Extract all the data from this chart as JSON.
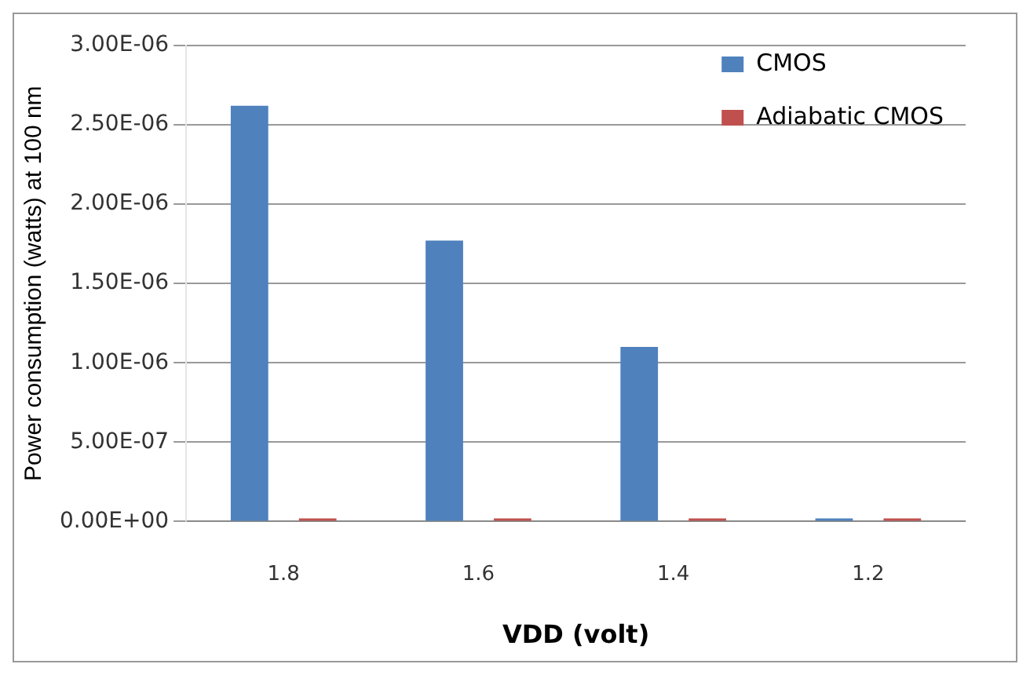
{
  "chart_data": {
    "type": "bar",
    "xlabel": "VDD (volt)",
    "ylabel": "Power consumption (watts) at 100 nm",
    "categories": [
      "1.8",
      "1.6",
      "1.4",
      "1.2"
    ],
    "series": [
      {
        "name": "CMOS",
        "color": "#4f81bd",
        "values": [
          2.62e-06,
          1.77e-06,
          1.1e-06,
          0
        ]
      },
      {
        "name": "Adiabatic CMOS",
        "color": "#c0504d",
        "values": [
          0,
          0,
          0,
          0
        ]
      }
    ],
    "ylim": [
      0,
      3e-06
    ],
    "yticks": [
      {
        "value": 0,
        "label": "0.00E+00"
      },
      {
        "value": 5e-07,
        "label": "5.00E-07"
      },
      {
        "value": 1e-06,
        "label": "1.00E-06"
      },
      {
        "value": 1.5e-06,
        "label": "1.50E-06"
      },
      {
        "value": 2e-06,
        "label": "2.00E-06"
      },
      {
        "value": 2.5e-06,
        "label": "2.50E-06"
      },
      {
        "value": 3e-06,
        "label": "3.00E-06"
      }
    ],
    "grid": "y",
    "legend": "top right"
  }
}
